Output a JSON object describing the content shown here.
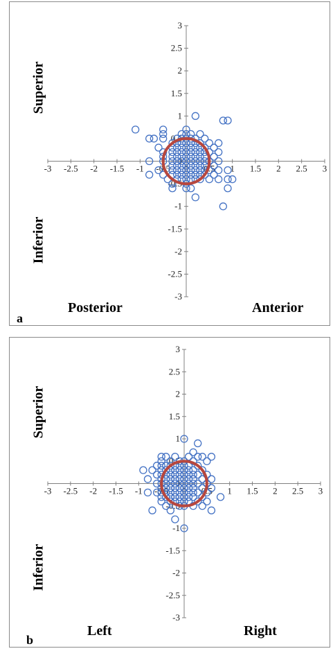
{
  "panels": [
    {
      "panel_label": "a",
      "labels": {
        "top": "Superior",
        "bottom": "Inferior",
        "left": "Posterior",
        "right": "Anterior"
      }
    },
    {
      "panel_label": "b",
      "labels": {
        "top": "Superior",
        "bottom": "Inferior",
        "left": "Left",
        "right": "Right"
      }
    }
  ],
  "colors": {
    "points": "#4472C4",
    "circle": "#B7473E",
    "axis": "#808080",
    "frame": "#8a8a8a"
  },
  "chart_data": [
    {
      "type": "scatter",
      "title": "",
      "xlim": [
        -3,
        3
      ],
      "ylim": [
        -3,
        3
      ],
      "xticks": [
        "-3",
        "-2.5",
        "-2",
        "-1.5",
        "-1",
        "-0.5",
        "0",
        "0.5",
        "1",
        "1.5",
        "2",
        "2.5",
        "3"
      ],
      "yticks": [
        "3",
        "2.5",
        "2",
        "1.5",
        "1",
        "0.5",
        "0",
        "-0.5",
        "-1",
        "-1.5",
        "-2",
        "-2.5",
        "-3"
      ],
      "grid": false,
      "reference_circle": {
        "center": [
          0,
          0
        ],
        "radius": 0.5
      },
      "points": [
        [
          -1.1,
          0.7
        ],
        [
          -0.8,
          0.5
        ],
        [
          -0.7,
          0.5
        ],
        [
          -0.5,
          0.7
        ],
        [
          -0.5,
          0.6
        ],
        [
          -0.5,
          0.5
        ],
        [
          -0.6,
          0.3
        ],
        [
          -0.5,
          0.2
        ],
        [
          -0.5,
          0.1
        ],
        [
          -0.8,
          0.0
        ],
        [
          -0.5,
          0.0
        ],
        [
          -0.8,
          -0.3
        ],
        [
          -0.5,
          -0.3
        ],
        [
          -0.6,
          -0.2
        ],
        [
          -0.4,
          -0.4
        ],
        [
          -0.3,
          -0.5
        ],
        [
          -0.3,
          -0.6
        ],
        [
          -0.3,
          0.4
        ],
        [
          -0.3,
          0.3
        ],
        [
          -0.3,
          0.2
        ],
        [
          -0.3,
          0.1
        ],
        [
          -0.3,
          0.0
        ],
        [
          -0.3,
          -0.1
        ],
        [
          -0.3,
          -0.2
        ],
        [
          -0.3,
          -0.3
        ],
        [
          -0.2,
          0.5
        ],
        [
          -0.2,
          0.4
        ],
        [
          -0.2,
          0.3
        ],
        [
          -0.2,
          0.2
        ],
        [
          -0.2,
          0.1
        ],
        [
          -0.2,
          0.0
        ],
        [
          -0.2,
          -0.1
        ],
        [
          -0.2,
          -0.2
        ],
        [
          -0.2,
          -0.3
        ],
        [
          -0.2,
          -0.4
        ],
        [
          -0.1,
          0.6
        ],
        [
          -0.1,
          0.5
        ],
        [
          -0.1,
          0.4
        ],
        [
          -0.1,
          0.3
        ],
        [
          -0.1,
          0.2
        ],
        [
          -0.1,
          0.1
        ],
        [
          -0.1,
          0.0
        ],
        [
          -0.1,
          -0.1
        ],
        [
          -0.1,
          -0.2
        ],
        [
          -0.1,
          -0.3
        ],
        [
          -0.1,
          -0.4
        ],
        [
          0.0,
          0.7
        ],
        [
          0.0,
          0.6
        ],
        [
          0.0,
          0.5
        ],
        [
          0.0,
          0.4
        ],
        [
          0.0,
          0.3
        ],
        [
          0.0,
          0.2
        ],
        [
          0.0,
          0.1
        ],
        [
          0.0,
          0.0
        ],
        [
          0.0,
          -0.1
        ],
        [
          0.0,
          -0.2
        ],
        [
          0.0,
          -0.3
        ],
        [
          0.0,
          -0.4
        ],
        [
          0.0,
          -0.5
        ],
        [
          0.0,
          -0.6
        ],
        [
          0.1,
          0.6
        ],
        [
          0.1,
          0.5
        ],
        [
          0.1,
          0.4
        ],
        [
          0.1,
          0.3
        ],
        [
          0.1,
          0.2
        ],
        [
          0.1,
          0.1
        ],
        [
          0.1,
          0.0
        ],
        [
          0.1,
          -0.1
        ],
        [
          0.1,
          -0.2
        ],
        [
          0.1,
          -0.3
        ],
        [
          0.1,
          -0.4
        ],
        [
          0.1,
          -0.6
        ],
        [
          0.2,
          1.0
        ],
        [
          0.2,
          0.5
        ],
        [
          0.2,
          0.4
        ],
        [
          0.2,
          0.3
        ],
        [
          0.2,
          0.2
        ],
        [
          0.2,
          0.1
        ],
        [
          0.2,
          0.0
        ],
        [
          0.2,
          -0.1
        ],
        [
          0.2,
          -0.2
        ],
        [
          0.2,
          -0.3
        ],
        [
          0.2,
          -0.4
        ],
        [
          0.2,
          -0.8
        ],
        [
          0.3,
          0.6
        ],
        [
          0.3,
          0.4
        ],
        [
          0.3,
          0.3
        ],
        [
          0.3,
          0.2
        ],
        [
          0.3,
          0.1
        ],
        [
          0.3,
          0.0
        ],
        [
          0.3,
          -0.1
        ],
        [
          0.3,
          -0.2
        ],
        [
          0.3,
          -0.3
        ],
        [
          0.3,
          -0.4
        ],
        [
          0.4,
          0.5
        ],
        [
          0.4,
          0.3
        ],
        [
          0.4,
          0.2
        ],
        [
          0.4,
          0.1
        ],
        [
          0.4,
          0.0
        ],
        [
          0.4,
          -0.1
        ],
        [
          0.4,
          -0.2
        ],
        [
          0.4,
          -0.3
        ],
        [
          0.5,
          0.4
        ],
        [
          0.5,
          0.2
        ],
        [
          0.5,
          0.0
        ],
        [
          0.5,
          -0.2
        ],
        [
          0.5,
          -0.4
        ],
        [
          0.6,
          0.3
        ],
        [
          0.6,
          0.1
        ],
        [
          0.6,
          -0.1
        ],
        [
          0.6,
          -0.3
        ],
        [
          0.7,
          0.4
        ],
        [
          0.7,
          0.2
        ],
        [
          0.7,
          0.0
        ],
        [
          0.7,
          -0.2
        ],
        [
          0.7,
          -0.4
        ],
        [
          0.8,
          0.9
        ],
        [
          0.9,
          0.9
        ],
        [
          0.8,
          -1.0
        ],
        [
          0.9,
          -0.2
        ],
        [
          0.9,
          -0.4
        ],
        [
          0.9,
          -0.6
        ],
        [
          1.0,
          -0.4
        ]
      ]
    },
    {
      "type": "scatter",
      "title": "",
      "xlim": [
        -3,
        3
      ],
      "ylim": [
        -3,
        3
      ],
      "xticks": [
        "-3",
        "-2.5",
        "-2",
        "-1.5",
        "-1",
        "-0.5",
        "0",
        "0.5",
        "1",
        "1.5",
        "2",
        "2.5",
        "3"
      ],
      "yticks": [
        "3",
        "2.5",
        "2",
        "1.5",
        "1",
        "0.5",
        "0",
        "-0.5",
        "-1",
        "-1.5",
        "-2",
        "-2.5",
        "-3"
      ],
      "grid": false,
      "reference_circle": {
        "center": [
          0,
          0
        ],
        "radius": 0.5
      },
      "points": [
        [
          0.0,
          1.0
        ],
        [
          0.3,
          0.9
        ],
        [
          -0.5,
          0.6
        ],
        [
          -0.4,
          0.6
        ],
        [
          -0.2,
          0.6
        ],
        [
          0.1,
          0.6
        ],
        [
          0.2,
          0.7
        ],
        [
          0.3,
          0.6
        ],
        [
          0.4,
          0.6
        ],
        [
          0.6,
          0.6
        ],
        [
          -0.9,
          0.3
        ],
        [
          -0.7,
          0.3
        ],
        [
          -0.8,
          0.1
        ],
        [
          -0.6,
          0.4
        ],
        [
          -0.6,
          0.2
        ],
        [
          -0.6,
          0.0
        ],
        [
          -0.6,
          -0.2
        ],
        [
          -0.8,
          -0.2
        ],
        [
          -0.5,
          0.5
        ],
        [
          -0.5,
          0.4
        ],
        [
          -0.5,
          0.3
        ],
        [
          -0.5,
          0.2
        ],
        [
          -0.5,
          0.1
        ],
        [
          -0.5,
          0.0
        ],
        [
          -0.5,
          -0.1
        ],
        [
          -0.5,
          -0.2
        ],
        [
          -0.5,
          -0.3
        ],
        [
          -0.5,
          -0.4
        ],
        [
          -0.4,
          0.4
        ],
        [
          -0.4,
          0.3
        ],
        [
          -0.4,
          0.2
        ],
        [
          -0.4,
          0.1
        ],
        [
          -0.4,
          0.0
        ],
        [
          -0.4,
          -0.1
        ],
        [
          -0.4,
          -0.2
        ],
        [
          -0.4,
          -0.3
        ],
        [
          -0.4,
          -0.5
        ],
        [
          -0.3,
          0.5
        ],
        [
          -0.3,
          0.4
        ],
        [
          -0.3,
          0.3
        ],
        [
          -0.3,
          0.2
        ],
        [
          -0.3,
          0.1
        ],
        [
          -0.3,
          0.0
        ],
        [
          -0.3,
          -0.1
        ],
        [
          -0.3,
          -0.2
        ],
        [
          -0.3,
          -0.3
        ],
        [
          -0.3,
          -0.4
        ],
        [
          -0.2,
          0.4
        ],
        [
          -0.2,
          0.3
        ],
        [
          -0.2,
          0.2
        ],
        [
          -0.2,
          0.1
        ],
        [
          -0.2,
          0.0
        ],
        [
          -0.2,
          -0.1
        ],
        [
          -0.2,
          -0.2
        ],
        [
          -0.2,
          -0.3
        ],
        [
          -0.2,
          -0.4
        ],
        [
          -0.1,
          0.5
        ],
        [
          -0.1,
          0.4
        ],
        [
          -0.1,
          0.3
        ],
        [
          -0.1,
          0.2
        ],
        [
          -0.1,
          0.1
        ],
        [
          -0.1,
          0.0
        ],
        [
          -0.1,
          -0.1
        ],
        [
          -0.1,
          -0.2
        ],
        [
          -0.1,
          -0.3
        ],
        [
          -0.1,
          -0.4
        ],
        [
          -0.1,
          -0.5
        ],
        [
          0.0,
          0.5
        ],
        [
          0.0,
          0.4
        ],
        [
          0.0,
          0.3
        ],
        [
          0.0,
          0.2
        ],
        [
          0.0,
          0.1
        ],
        [
          0.0,
          0.0
        ],
        [
          0.0,
          -0.1
        ],
        [
          0.0,
          -0.2
        ],
        [
          0.0,
          -0.3
        ],
        [
          0.0,
          -0.4
        ],
        [
          0.0,
          -0.5
        ],
        [
          0.1,
          0.4
        ],
        [
          0.1,
          0.3
        ],
        [
          0.1,
          0.2
        ],
        [
          0.1,
          0.1
        ],
        [
          0.1,
          0.0
        ],
        [
          0.1,
          -0.1
        ],
        [
          0.1,
          -0.2
        ],
        [
          0.1,
          -0.3
        ],
        [
          0.1,
          -0.4
        ],
        [
          0.2,
          0.5
        ],
        [
          0.2,
          0.3
        ],
        [
          0.2,
          0.2
        ],
        [
          0.2,
          0.1
        ],
        [
          0.2,
          0.0
        ],
        [
          0.2,
          -0.1
        ],
        [
          0.2,
          -0.2
        ],
        [
          0.2,
          -0.3
        ],
        [
          0.2,
          -0.5
        ],
        [
          0.3,
          0.4
        ],
        [
          0.3,
          0.2
        ],
        [
          0.3,
          0.0
        ],
        [
          0.3,
          -0.2
        ],
        [
          0.3,
          -0.4
        ],
        [
          0.4,
          0.3
        ],
        [
          0.4,
          0.1
        ],
        [
          0.4,
          -0.1
        ],
        [
          0.4,
          -0.3
        ],
        [
          0.4,
          -0.5
        ],
        [
          0.5,
          0.5
        ],
        [
          0.5,
          0.2
        ],
        [
          0.5,
          0.0
        ],
        [
          0.5,
          -0.2
        ],
        [
          0.5,
          -0.4
        ],
        [
          0.6,
          0.1
        ],
        [
          0.6,
          -0.1
        ],
        [
          0.6,
          -0.6
        ],
        [
          0.8,
          -0.3
        ],
        [
          -0.7,
          -0.6
        ],
        [
          -0.3,
          -0.6
        ],
        [
          -0.2,
          -0.8
        ],
        [
          0.0,
          -1.0
        ]
      ]
    }
  ]
}
